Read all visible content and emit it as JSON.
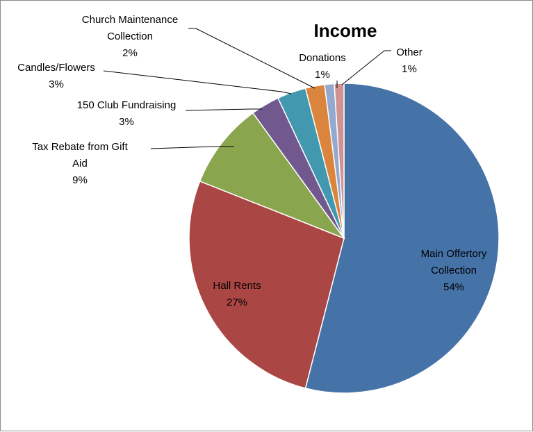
{
  "chart_data": {
    "type": "pie",
    "title": "Income",
    "start_angle_deg": 0,
    "direction": "clockwise",
    "slices": [
      {
        "name": "Main Offertory Collection",
        "lines": [
          "Main Offertory",
          "Collection",
          "54%"
        ],
        "value": 54,
        "color": "#4572A7"
      },
      {
        "name": "Hall Rents",
        "lines": [
          "Hall Rents",
          "27%"
        ],
        "value": 27,
        "color": "#AA4643"
      },
      {
        "name": "Tax Rebate from Gift Aid",
        "lines": [
          "Tax Rebate from Gift",
          "Aid",
          "9%"
        ],
        "value": 9,
        "color": "#89A54E"
      },
      {
        "name": "150 Club Fundraising",
        "lines": [
          "150 Club Fundraising",
          "3%"
        ],
        "value": 3,
        "color": "#71588F"
      },
      {
        "name": "Candles/Flowers",
        "lines": [
          "Candles/Flowers",
          "3%"
        ],
        "value": 3,
        "color": "#4198AF"
      },
      {
        "name": "Church Maintenance Collection",
        "lines": [
          "Church Maintenance",
          "Collection",
          "2%"
        ],
        "value": 2,
        "color": "#DB843D"
      },
      {
        "name": "Donations",
        "lines": [
          "Donations",
          "1%"
        ],
        "value": 1,
        "color": "#93A9CF"
      },
      {
        "name": "Other",
        "lines": [
          "Other",
          "1%"
        ],
        "value": 1,
        "color": "#D19392"
      }
    ],
    "legend": "none",
    "data_labels": "category name and percentage"
  }
}
